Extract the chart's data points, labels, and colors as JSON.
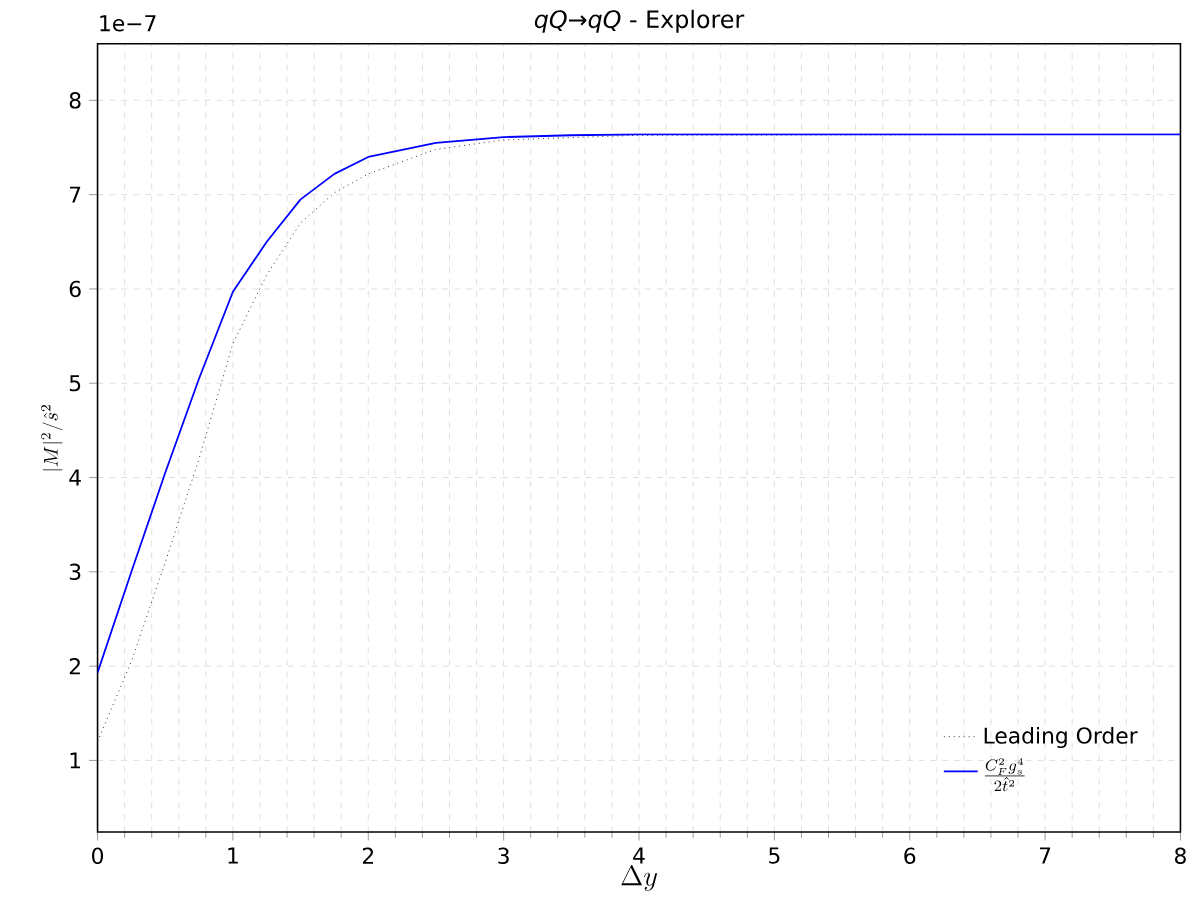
{
  "chart_data": {
    "type": "line",
    "title": "*qQ*→*qQ* - Explorer",
    "xlabel": "\\Delta y",
    "ylabel": "|M|^2/\\hat{s}^2",
    "annotations": [
      "1e−7"
    ],
    "xlim": [
      0,
      8
    ],
    "ylim": [
      0.24,
      8.6
    ],
    "xticks": [
      0,
      1,
      2,
      3,
      4,
      5,
      6,
      7,
      8
    ],
    "yticks": [
      1,
      2,
      3,
      4,
      5,
      6,
      7,
      8
    ],
    "grid": true,
    "legend": "bottom right",
    "marker": "none",
    "series": [
      {
        "name": "Leading Order",
        "color": "#333333",
        "line_style": "dotted",
        "x": [
          0,
          0.25,
          0.5,
          0.75,
          1.0,
          1.25,
          1.5,
          1.75,
          2.0,
          2.5,
          3.0,
          3.5,
          4.0,
          5.0,
          6.0,
          7.0,
          8.0
        ],
        "values": [
          1.2,
          2.05,
          3.1,
          4.2,
          5.42,
          6.15,
          6.7,
          7.02,
          7.22,
          7.48,
          7.58,
          null,
          7.63,
          null,
          null,
          null,
          7.64
        ]
      },
      {
        "name": "\\frac{C_F^2 g_s^4}{2\\hat{t}^2}",
        "color": "#0000ff",
        "line_style": "solid",
        "x": [
          0,
          0.25,
          0.5,
          0.75,
          1.0,
          1.25,
          1.5,
          1.75,
          2.0,
          2.5,
          3.0,
          3.5,
          4.0,
          5.0,
          6.0,
          7.0,
          8.0
        ],
        "values": [
          1.93,
          3.0,
          4.05,
          5.05,
          5.97,
          6.5,
          6.95,
          7.22,
          7.4,
          7.55,
          7.61,
          7.63,
          7.64,
          7.64,
          7.64,
          7.64,
          7.64
        ]
      }
    ]
  }
}
